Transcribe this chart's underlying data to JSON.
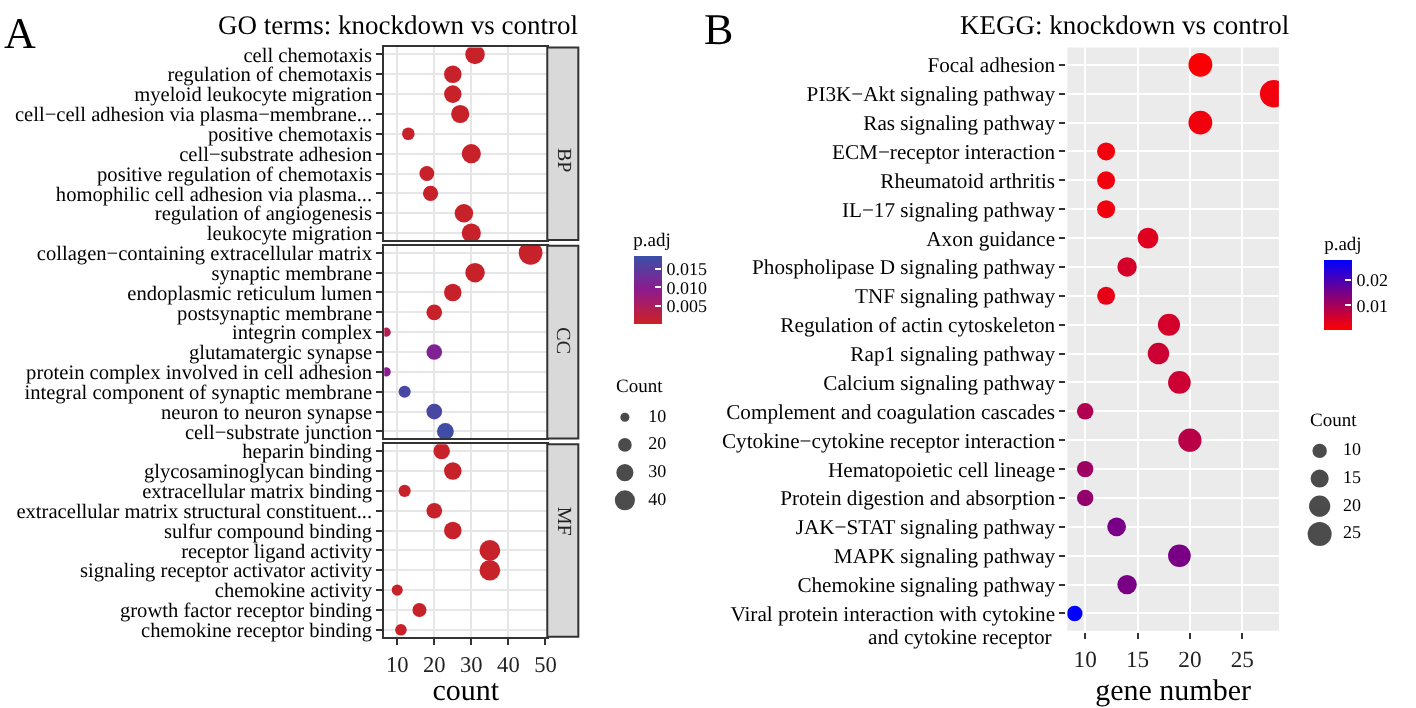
{
  "chart_data": [
    {
      "type": "bubble",
      "orientation": "horizontal",
      "title": "GO terms: knockdown vs control",
      "xlabel": "count",
      "annotations": [
        "A",
        "BP",
        "CC",
        "MF"
      ],
      "categories": [
        "cell chemotaxis",
        "regulation of chemotaxis",
        "myeloid leukocyte migration",
        "cell−cell adhesion via plasma−membrane...",
        "positive chemotaxis",
        "cell−substrate adhesion",
        "positive regulation of chemotaxis",
        "homophilic cell adhesion via plasma...",
        "regulation of angiogenesis",
        "leukocyte migration",
        "collagen−containing extracellular matrix",
        "synaptic membrane",
        "endoplasmic reticulum lumen",
        "postsynaptic membrane",
        "integrin complex",
        "glutamatergic synapse",
        "protein complex involved in cell adhesion",
        "integral component of synaptic membrane",
        "neuron to neuron synapse",
        "cell−substrate junction",
        "heparin binding",
        "glycosaminoglycan binding",
        "extracellular matrix binding",
        "extracellular matrix structural constituent...",
        "sulfur compound binding",
        "receptor ligand activity",
        "signaling receptor activator activity",
        "chemokine activity",
        "growth factor receptor binding",
        "chemokine receptor binding"
      ],
      "values": [
        31,
        25,
        25,
        27,
        13,
        30,
        18,
        19,
        28,
        30,
        46,
        31,
        25,
        20,
        7,
        20,
        7,
        12,
        20,
        23,
        22,
        25,
        12,
        20,
        25,
        35,
        35,
        10,
        16,
        11
      ],
      "sizes": [
        31,
        25,
        25,
        27,
        13,
        30,
        18,
        19,
        28,
        30,
        46,
        31,
        25,
        20,
        7,
        20,
        7,
        12,
        20,
        23,
        22,
        25,
        12,
        20,
        25,
        35,
        35,
        10,
        16,
        11
      ],
      "cvalues": [
        0.001,
        0.001,
        0.001,
        0.001,
        0.001,
        0.001,
        0.001,
        0.001,
        0.001,
        0.001,
        0.001,
        0.001,
        0.001,
        0.001,
        0.004,
        0.011,
        0.01,
        0.017,
        0.017,
        0.018,
        0.001,
        0.001,
        0.001,
        0.001,
        0.001,
        0.001,
        0.001,
        0.001,
        0.001,
        0.001
      ],
      "clim": [
        0.0003,
        0.0185
      ],
      "cticks": [
        {
          "value": 0.005,
          "label": "0.005"
        },
        {
          "value": 0.01,
          "label": "0.010"
        },
        {
          "value": 0.015,
          "label": "0.015"
        }
      ],
      "clabel": "p.adj",
      "size_legend": [
        10,
        20,
        30,
        40
      ],
      "legend_title": "Count",
      "xlim": [
        6.5,
        50.5
      ],
      "xticks": [
        10,
        20,
        30,
        40,
        50
      ],
      "grid": true
    },
    {
      "type": "bubble",
      "orientation": "horizontal",
      "title": "KEGG: knockdown vs control",
      "xlabel": "gene number",
      "annotations": [
        "B"
      ],
      "categories": [
        "Focal adhesion",
        "PI3K−Akt signaling pathway",
        "Ras signaling pathway",
        "ECM−receptor interaction",
        "Rheumatoid arthritis",
        "IL−17 signaling pathway",
        "Axon guidance",
        "Phospholipase D signaling pathway",
        "TNF signaling pathway",
        "Regulation of actin cytoskeleton",
        "Rap1 signaling pathway",
        "Calcium signaling pathway",
        "Complement and coagulation cascades",
        "Cytokine−cytokine receptor interaction",
        "Hematopoietic cell lineage",
        "Protein digestion and absorption",
        "JAK−STAT signaling pathway",
        "MAPK signaling pathway",
        "Chemokine signaling pathway",
        "Viral protein interaction with cytokine\nand cytokine receptor"
      ],
      "values": [
        21,
        28,
        21,
        12,
        12,
        12,
        16,
        14,
        12,
        18,
        17,
        19,
        10,
        20,
        10,
        10,
        13,
        19,
        14,
        9
      ],
      "sizes": [
        21,
        28,
        21,
        12,
        12,
        12,
        16,
        14,
        12,
        18,
        17,
        19,
        10,
        20,
        10,
        10,
        13,
        19,
        14,
        9
      ],
      "cvalues": [
        0.001,
        0.002,
        0.002,
        0.002,
        0.002,
        0.002,
        0.004,
        0.005,
        0.003,
        0.005,
        0.006,
        0.006,
        0.009,
        0.008,
        0.011,
        0.012,
        0.015,
        0.015,
        0.015,
        0.028
      ],
      "clim": [
        0.0005,
        0.028
      ],
      "cticks": [
        0.01,
        0.02
      ],
      "clabel": "p.adj",
      "size_legend": [
        10,
        15,
        20,
        25
      ],
      "legend_title": "Count",
      "xlim": [
        8.3,
        28.5
      ],
      "xticks": [
        10,
        15,
        20,
        25
      ],
      "grid": true
    }
  ]
}
